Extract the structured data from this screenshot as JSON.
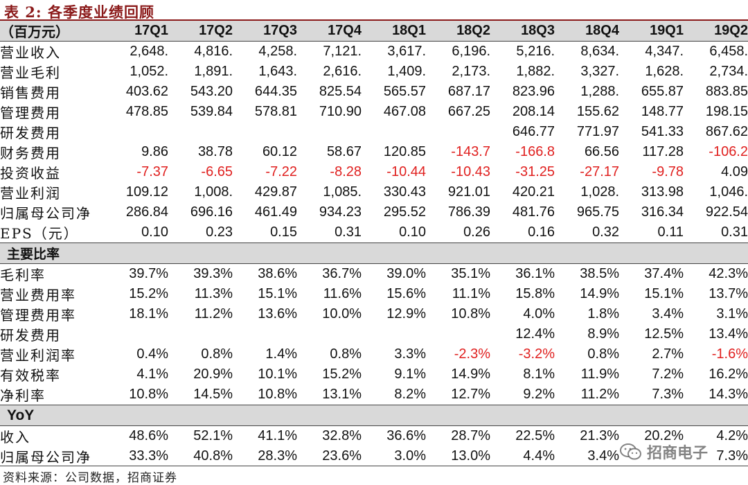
{
  "title": "表 2:  各季度业绩回顾",
  "table": {
    "unit_label": "（百万元）",
    "columns": [
      "17Q1",
      "17Q2",
      "17Q3",
      "17Q4",
      "18Q1",
      "18Q2",
      "18Q3",
      "18Q4",
      "19Q1",
      "19Q2"
    ],
    "rows": [
      {
        "label": "营业收入",
        "values": [
          "2,648.",
          "4,816.",
          "4,258.",
          "7,121.",
          "3,617.",
          "6,196.",
          "5,216.",
          "8,634.",
          "4,347.",
          "6,458."
        ]
      },
      {
        "label": "营业毛利",
        "values": [
          "1,052.",
          "1,891.",
          "1,643.",
          "2,616.",
          "1,409.",
          "2,173.",
          "1,882.",
          "3,327.",
          "1,628.",
          "2,734."
        ]
      },
      {
        "label": "销售费用",
        "values": [
          "403.62",
          "543.20",
          "644.35",
          "825.54",
          "565.57",
          "687.17",
          "823.96",
          "1,288.",
          "655.87",
          "883.85"
        ]
      },
      {
        "label": "管理费用",
        "values": [
          "478.85",
          "539.84",
          "578.81",
          "710.90",
          "467.08",
          "667.25",
          "208.14",
          "155.62",
          "148.77",
          "198.15"
        ]
      },
      {
        "label": "研发费用",
        "values": [
          "",
          "",
          "",
          "",
          "",
          "",
          "646.77",
          "771.97",
          "541.33",
          "867.62"
        ]
      },
      {
        "label": "财务费用",
        "values": [
          "9.86",
          "38.78",
          "60.12",
          "58.67",
          "120.85",
          "-143.7",
          "-166.8",
          "66.56",
          "117.28",
          "-106.2"
        ]
      },
      {
        "label": "投资收益",
        "values": [
          "-7.37",
          "-6.65",
          "-7.22",
          "-8.28",
          "-10.44",
          "-10.43",
          "-31.25",
          "-27.17",
          "-9.78",
          "4.09"
        ]
      },
      {
        "label": "营业利润",
        "values": [
          "109.12",
          "1,008.",
          "429.87",
          "1,085.",
          "330.43",
          "921.01",
          "420.21",
          "1,028.",
          "313.98",
          "1,046."
        ]
      },
      {
        "label": "归属母公司净",
        "values": [
          "286.84",
          "696.16",
          "461.49",
          "934.23",
          "295.52",
          "786.39",
          "481.76",
          "965.75",
          "316.34",
          "922.54"
        ]
      },
      {
        "label": "EPS（元）",
        "values": [
          "0.10",
          "0.23",
          "0.15",
          "0.31",
          "0.10",
          "0.26",
          "0.16",
          "0.32",
          "0.11",
          "0.31"
        ]
      }
    ],
    "ratios_section": {
      "title": "主要比率",
      "rows": [
        {
          "label": "毛利率",
          "values": [
            "39.7%",
            "39.3%",
            "38.6%",
            "36.7%",
            "39.0%",
            "35.1%",
            "36.1%",
            "38.5%",
            "37.4%",
            "42.3%"
          ]
        },
        {
          "label": "营业费用率",
          "values": [
            "15.2%",
            "11.3%",
            "15.1%",
            "11.6%",
            "15.6%",
            "11.1%",
            "15.8%",
            "14.9%",
            "15.1%",
            "13.7%"
          ]
        },
        {
          "label": "管理费用率",
          "values": [
            "18.1%",
            "11.2%",
            "13.6%",
            "10.0%",
            "12.9%",
            "10.8%",
            "4.0%",
            "1.8%",
            "3.4%",
            "3.1%"
          ]
        },
        {
          "label": "研发费用",
          "values": [
            "",
            "",
            "",
            "",
            "",
            "",
            "12.4%",
            "8.9%",
            "12.5%",
            "13.4%"
          ]
        },
        {
          "label": "营业利润率",
          "values": [
            "0.4%",
            "0.8%",
            "1.4%",
            "0.8%",
            "3.3%",
            "-2.3%",
            "-3.2%",
            "0.8%",
            "2.7%",
            "-1.6%"
          ]
        },
        {
          "label": "有效税率",
          "values": [
            "4.1%",
            "20.9%",
            "10.1%",
            "15.2%",
            "9.1%",
            "14.9%",
            "8.1%",
            "11.9%",
            "7.2%",
            "16.2%"
          ]
        },
        {
          "label": "净利率",
          "values": [
            "10.8%",
            "14.5%",
            "10.8%",
            "13.1%",
            "8.2%",
            "12.7%",
            "9.2%",
            "11.2%",
            "7.3%",
            "14.3%"
          ]
        }
      ]
    },
    "yoy_section": {
      "title": "YoY",
      "rows": [
        {
          "label": "收入",
          "values": [
            "48.6%",
            "52.1%",
            "41.1%",
            "32.8%",
            "36.6%",
            "28.7%",
            "22.5%",
            "21.3%",
            "20.2%",
            "4.2%"
          ]
        },
        {
          "label": "归属母公司净",
          "values": [
            "33.3%",
            "40.8%",
            "28.3%",
            "23.6%",
            "3.0%",
            "13.0%",
            "4.4%",
            "3.4%",
            "",
            "7.3%"
          ]
        }
      ]
    },
    "negative_color": "#e0201f"
  },
  "footnote": "资料来源：公司数据，招商证券",
  "watermark": {
    "text": "招商电子",
    "icon": "wechat-icon"
  }
}
